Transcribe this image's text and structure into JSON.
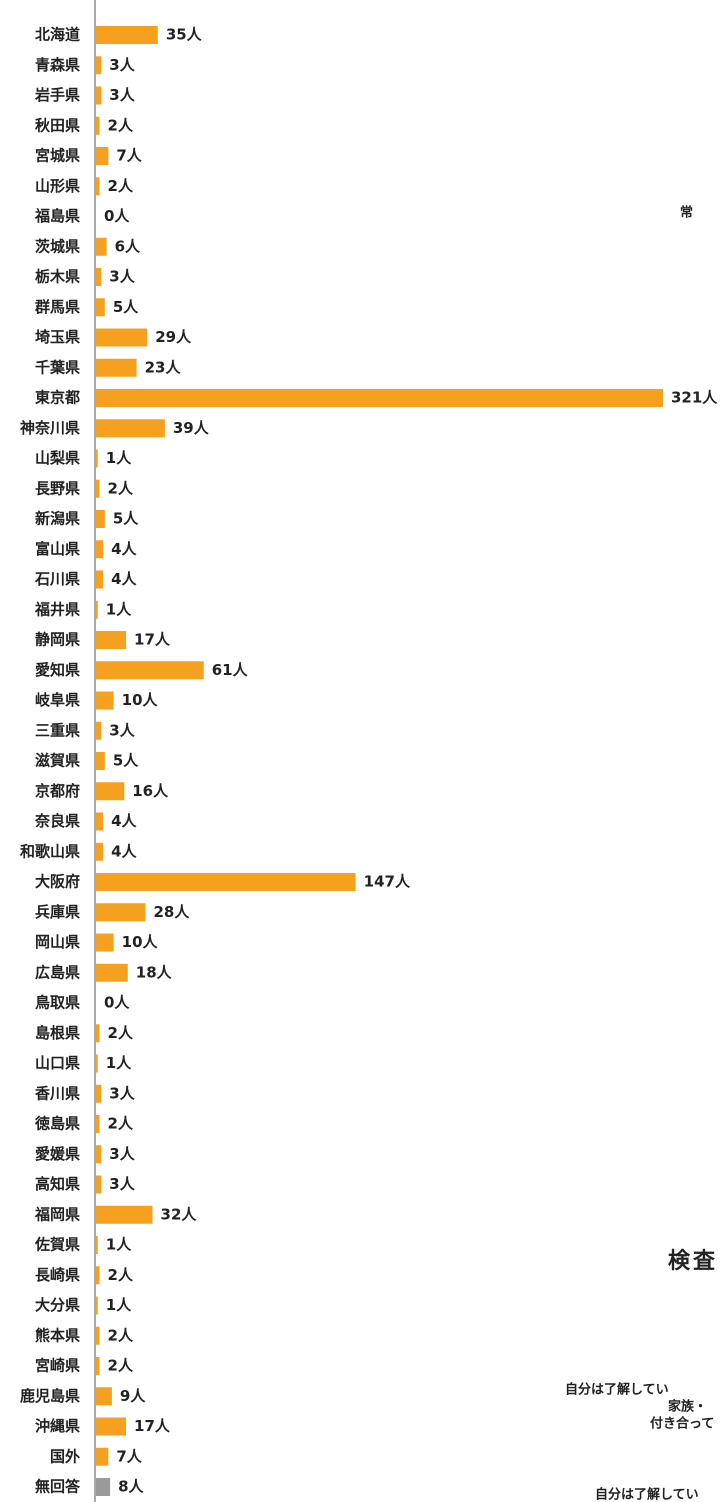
{
  "chart_data": {
    "type": "bar",
    "orientation": "horizontal",
    "categories": [
      "北海道",
      "青森県",
      "岩手県",
      "秋田県",
      "宮城県",
      "山形県",
      "福島県",
      "茨城県",
      "栃木県",
      "群馬県",
      "埼玉県",
      "千葉県",
      "東京都",
      "神奈川県",
      "山梨県",
      "長野県",
      "新潟県",
      "富山県",
      "石川県",
      "福井県",
      "静岡県",
      "愛知県",
      "岐阜県",
      "三重県",
      "滋賀県",
      "京都府",
      "奈良県",
      "和歌山県",
      "大阪府",
      "兵庫県",
      "岡山県",
      "広島県",
      "鳥取県",
      "島根県",
      "山口県",
      "香川県",
      "徳島県",
      "愛媛県",
      "高知県",
      "福岡県",
      "佐賀県",
      "長崎県",
      "大分県",
      "熊本県",
      "宮崎県",
      "鹿児島県",
      "沖縄県",
      "国外",
      "無回答"
    ],
    "values": [
      35,
      3,
      3,
      2,
      7,
      2,
      0,
      6,
      3,
      5,
      29,
      23,
      321,
      39,
      1,
      2,
      5,
      4,
      4,
      1,
      17,
      61,
      10,
      3,
      5,
      16,
      4,
      4,
      147,
      28,
      10,
      18,
      0,
      2,
      1,
      3,
      2,
      3,
      3,
      32,
      1,
      2,
      1,
      2,
      2,
      9,
      17,
      7,
      8
    ],
    "value_labels": [
      "35人",
      "3人",
      "3人",
      "2人",
      "7人",
      "2人",
      "0人",
      "6人",
      "3人",
      "5人",
      "29人",
      "23人",
      "321人",
      "39人",
      "1人",
      "2人",
      "5人",
      "4人",
      "4人",
      "1人",
      "17人",
      "61人",
      "10人",
      "3人",
      "5人",
      "16人",
      "4人",
      "4人",
      "147人",
      "28人",
      "10人",
      "18人",
      "0人",
      "2人",
      "1人",
      "3人",
      "2人",
      "3人",
      "3人",
      "32人",
      "1人",
      "2人",
      "1人",
      "2人",
      "2人",
      "9人",
      "17人",
      "7人",
      "8人"
    ],
    "color": "#f6a020",
    "last_color": "#9a9a9a",
    "annotations": [
      "常",
      "検査",
      "自分は了解してい",
      "家族・",
      "付き合って",
      "自分は了解してい"
    ]
  }
}
